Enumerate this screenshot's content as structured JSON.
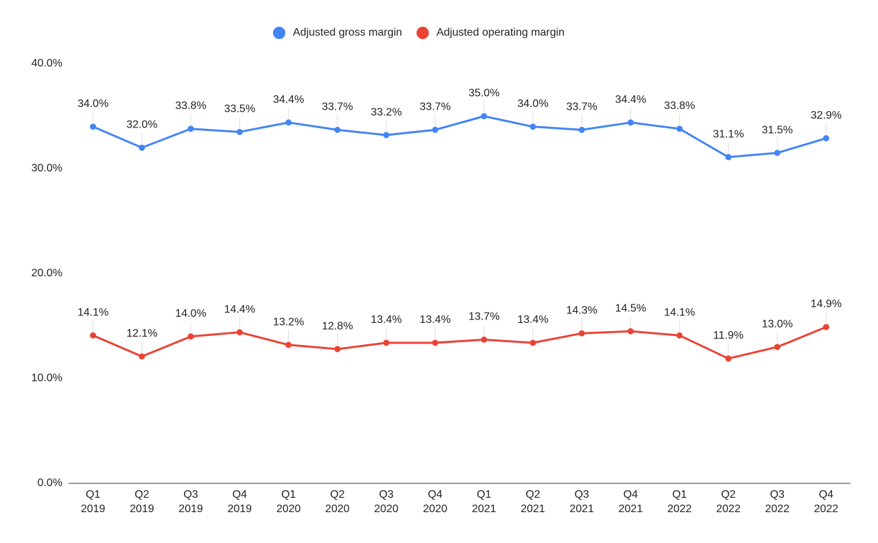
{
  "chart_data": {
    "type": "line",
    "categories": [
      [
        "Q1",
        "2019"
      ],
      [
        "Q2",
        "2019"
      ],
      [
        "Q3",
        "2019"
      ],
      [
        "Q4",
        "2019"
      ],
      [
        "Q1",
        "2020"
      ],
      [
        "Q2",
        "2020"
      ],
      [
        "Q3",
        "2020"
      ],
      [
        "Q4",
        "2020"
      ],
      [
        "Q1",
        "2021"
      ],
      [
        "Q2",
        "2021"
      ],
      [
        "Q3",
        "2021"
      ],
      [
        "Q4",
        "2021"
      ],
      [
        "Q1",
        "2022"
      ],
      [
        "Q2",
        "2022"
      ],
      [
        "Q3",
        "2022"
      ],
      [
        "Q4",
        "2022"
      ]
    ],
    "series": [
      {
        "name": "Adjusted gross margin",
        "color": "#4285f4",
        "values": [
          34.0,
          32.0,
          33.8,
          33.5,
          34.4,
          33.7,
          33.2,
          33.7,
          35.0,
          34.0,
          33.7,
          34.4,
          33.8,
          31.1,
          31.5,
          32.9
        ],
        "value_labels": [
          "34.0%",
          "32.0%",
          "33.8%",
          "33.5%",
          "34.4%",
          "33.7%",
          "33.2%",
          "33.7%",
          "35.0%",
          "34.0%",
          "33.7%",
          "34.4%",
          "33.8%",
          "31.1%",
          "31.5%",
          "32.9%"
        ]
      },
      {
        "name": "Adjusted operating margin",
        "color": "#ea4335",
        "values": [
          14.1,
          12.1,
          14.0,
          14.4,
          13.2,
          12.8,
          13.4,
          13.4,
          13.7,
          13.4,
          14.3,
          14.5,
          14.1,
          11.9,
          13.0,
          14.9
        ],
        "value_labels": [
          "14.1%",
          "12.1%",
          "14.0%",
          "14.4%",
          "13.2%",
          "12.8%",
          "13.4%",
          "13.4%",
          "13.7%",
          "13.4%",
          "14.3%",
          "14.5%",
          "14.1%",
          "11.9%",
          "13.0%",
          "14.9%"
        ]
      }
    ],
    "ylim": [
      0,
      40
    ],
    "yticks": [
      {
        "value": 0,
        "label": "0.0%"
      },
      {
        "value": 10,
        "label": "10.0%"
      },
      {
        "value": 20,
        "label": "20.0%"
      },
      {
        "value": 30,
        "label": "30.0%"
      },
      {
        "value": 40,
        "label": "40.0%"
      }
    ],
    "grid": false,
    "legend": "top"
  }
}
